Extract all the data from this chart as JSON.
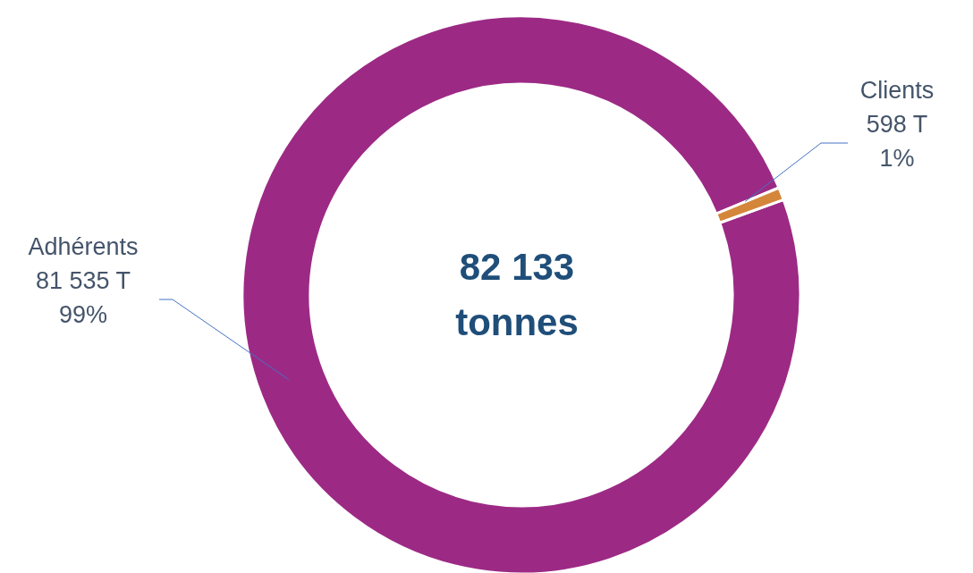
{
  "chart_data": {
    "type": "donut",
    "categories": [
      "Adhérents",
      "Clients"
    ],
    "values": [
      81535,
      598
    ],
    "colors": [
      "#9c2a85",
      "#d4863a"
    ],
    "value_labels": [
      "81 535 T\n99%",
      "598 T\n1%"
    ],
    "annotations": [
      "82 133 tonnes"
    ]
  }
}
